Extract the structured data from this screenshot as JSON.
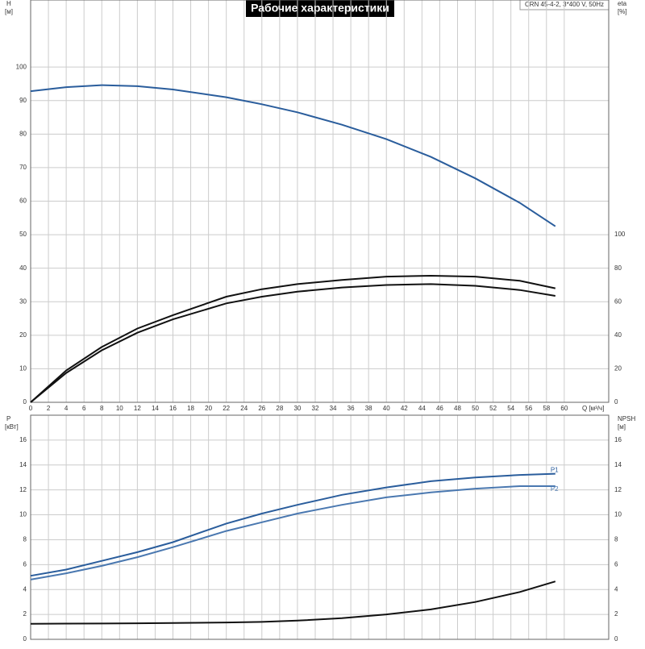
{
  "chart_data": [
    {
      "type": "line",
      "title": "Рабочие характеристики",
      "subtitle": "CRN 45-4-2, 3*400 V, 50Hz",
      "y_label": "H",
      "y_unit": "[м]",
      "y2_label": "eta",
      "y2_unit": "[%]",
      "x_label": "Q [м³/ч]",
      "xlim": [
        0,
        65
      ],
      "xticks": [
        0,
        2,
        4,
        6,
        8,
        10,
        12,
        14,
        16,
        18,
        20,
        22,
        24,
        26,
        28,
        30,
        32,
        34,
        36,
        38,
        40,
        42,
        44,
        46,
        48,
        50,
        52,
        54,
        56,
        58,
        60
      ],
      "ylim": [
        0,
        120
      ],
      "yticks": [
        0,
        10,
        20,
        30,
        40,
        50,
        60,
        70,
        80,
        90,
        100
      ],
      "y2lim": [
        0,
        240
      ],
      "y2ticks": [
        0,
        20,
        40,
        60,
        80,
        100
      ],
      "grid": true,
      "x": [
        0,
        4,
        8,
        12,
        16,
        22,
        26,
        30,
        35,
        40,
        45,
        50,
        55,
        59
      ],
      "series": [
        {
          "color": "#2a5d9c",
          "values": [
            92.8,
            94.0,
            94.6,
            94.3,
            93.3,
            91.0,
            88.9,
            86.5,
            82.8,
            78.5,
            73.2,
            66.8,
            59.5,
            52.5
          ]
        },
        {
          "color": "#111111",
          "axis": "y2",
          "values": [
            0,
            19,
            33,
            44,
            52,
            63,
            67.5,
            70.5,
            73,
            75,
            75.5,
            75,
            72.5,
            68
          ]
        },
        {
          "color": "#111111",
          "axis": "y2",
          "values": [
            0,
            17.5,
            31,
            41.5,
            49.5,
            59,
            63,
            66,
            68.5,
            70,
            70.5,
            69.5,
            67,
            63.5
          ]
        }
      ]
    },
    {
      "type": "line",
      "y_label": "P",
      "y_unit": "[кВт]",
      "y2_label": "NPSH",
      "y2_unit": "[м]",
      "xlim": [
        0,
        65
      ],
      "ylim": [
        0,
        18
      ],
      "yticks": [
        0,
        2,
        4,
        6,
        8,
        10,
        12,
        14,
        16
      ],
      "y2lim": [
        0,
        18
      ],
      "y2ticks": [
        0,
        2,
        4,
        6,
        8,
        10,
        12,
        14,
        16
      ],
      "grid": true,
      "x": [
        0,
        4,
        8,
        12,
        16,
        22,
        26,
        30,
        35,
        40,
        45,
        50,
        55,
        59
      ],
      "series": [
        {
          "name": "P1",
          "color": "#2a5d9c",
          "values": [
            5.1,
            5.6,
            6.3,
            7.0,
            7.8,
            9.3,
            10.1,
            10.8,
            11.6,
            12.2,
            12.7,
            13.0,
            13.2,
            13.3
          ]
        },
        {
          "name": "P2",
          "color": "#4a78b0",
          "values": [
            4.8,
            5.3,
            5.9,
            6.6,
            7.4,
            8.7,
            9.4,
            10.1,
            10.8,
            11.4,
            11.8,
            12.1,
            12.3,
            12.3
          ]
        },
        {
          "color": "#111111",
          "axis": "y2",
          "values": [
            1.25,
            1.26,
            1.27,
            1.29,
            1.31,
            1.35,
            1.4,
            1.5,
            1.7,
            2.0,
            2.4,
            3.0,
            3.8,
            4.65
          ]
        }
      ]
    }
  ]
}
